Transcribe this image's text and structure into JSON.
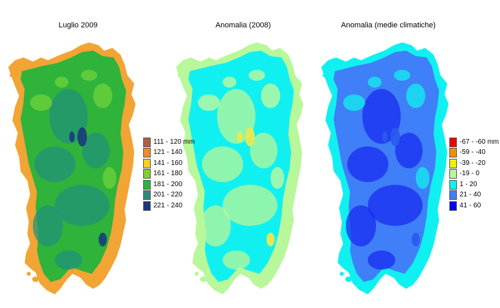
{
  "maps": [
    {
      "title": "Luglio 2009",
      "base_color": "#2fb33a",
      "coast_color": "#f2a434",
      "mottle_colors": [
        "#23917a",
        "#6fd33c",
        "#1a3b7b"
      ],
      "legend": [
        {
          "label": "111 - 120 mm",
          "color": "#b65a44"
        },
        {
          "label": "121 - 140",
          "color": "#f28a28"
        },
        {
          "label": "141 - 160",
          "color": "#f4d21e"
        },
        {
          "label": "161 - 180",
          "color": "#7fd22a"
        },
        {
          "label": "181 - 200",
          "color": "#2fb33a"
        },
        {
          "label": "201 - 220",
          "color": "#2b8c7c"
        },
        {
          "label": "221 - 240",
          "color": "#1a3b7b"
        }
      ]
    },
    {
      "title": "Anomalia (2008)",
      "base_color": "#11f0f0",
      "coast_color": "#b8f79a",
      "mottle_colors": [
        "#b8f79a",
        "#c9f99a",
        "#f2e84a"
      ],
      "legend": []
    },
    {
      "title": "Anomalia (medie climatiche)",
      "base_color": "#3f7ff7",
      "coast_color": "#11f0f0",
      "mottle_colors": [
        "#1a2cf0",
        "#11f0f0",
        "#2a5af0"
      ],
      "legend": [
        {
          "label": "-67 - -60 mm",
          "color": "#f20000"
        },
        {
          "label": "-59 - -40",
          "color": "#f29000"
        },
        {
          "label": "-39 - -20",
          "color": "#f2f000"
        },
        {
          "label": "-19 - 0",
          "color": "#b8f79a"
        },
        {
          "label": "1 - 20",
          "color": "#11f0f0"
        },
        {
          "label": "21 - 40",
          "color": "#3f7ff7"
        },
        {
          "label": "41 - 60",
          "color": "#0000f0"
        }
      ]
    }
  ]
}
